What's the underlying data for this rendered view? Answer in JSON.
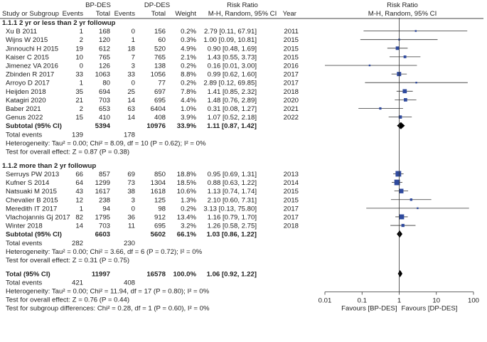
{
  "chart_data": {
    "type": "forest",
    "headers": {
      "group1": "BP-DES",
      "group2": "DP-DES",
      "rr_title": "Risk Ratio",
      "rr_method": "M-H, Random, 95% CI",
      "col_study": "Study or Subgroup",
      "col_events1": "Events",
      "col_total1": "Total",
      "col_events2": "Events",
      "col_total2": "Total",
      "col_weight": "Weight",
      "col_year": "Year"
    },
    "subgroups": [
      {
        "title": "1.1.1 2 yr or less than 2 yr followup",
        "studies": [
          {
            "name": "Xu B 2011",
            "e1": "1",
            "n1": "168",
            "e2": "0",
            "n2": "156",
            "weight": "0.2%",
            "ci_text": "2.79 [0.11, 67.91]",
            "year": "2011",
            "rr": 2.79,
            "lo": 0.11,
            "hi": 67.91
          },
          {
            "name": "Wijns W 2015",
            "e1": "2",
            "n1": "120",
            "e2": "1",
            "n2": "60",
            "weight": "0.3%",
            "ci_text": "1.00 [0.09, 10.81]",
            "year": "2015",
            "rr": 1.0,
            "lo": 0.09,
            "hi": 10.81
          },
          {
            "name": "Jinnouchi H 2015",
            "e1": "19",
            "n1": "612",
            "e2": "18",
            "n2": "520",
            "weight": "4.9%",
            "ci_text": "0.90 [0.48, 1.69]",
            "year": "2015",
            "rr": 0.9,
            "lo": 0.48,
            "hi": 1.69
          },
          {
            "name": "Kaiser C 2015",
            "e1": "10",
            "n1": "765",
            "e2": "7",
            "n2": "765",
            "weight": "2.1%",
            "ci_text": "1.43 [0.55, 3.73]",
            "year": "2015",
            "rr": 1.43,
            "lo": 0.55,
            "hi": 3.73
          },
          {
            "name": "Jimenez VA 2016",
            "e1": "0",
            "n1": "126",
            "e2": "3",
            "n2": "138",
            "weight": "0.2%",
            "ci_text": "0.16 [0.01, 3.00]",
            "year": "2016",
            "rr": 0.16,
            "lo": 0.01,
            "hi": 3.0
          },
          {
            "name": "Zbinden R 2017",
            "e1": "33",
            "n1": "1063",
            "e2": "33",
            "n2": "1056",
            "weight": "8.8%",
            "ci_text": "0.99 [0.62, 1.60]",
            "year": "2017",
            "rr": 0.99,
            "lo": 0.62,
            "hi": 1.6
          },
          {
            "name": "Arroyo D 2017",
            "e1": "1",
            "n1": "80",
            "e2": "0",
            "n2": "77",
            "weight": "0.2%",
            "ci_text": "2.89 [0.12, 69.85]",
            "year": "2017",
            "rr": 2.89,
            "lo": 0.12,
            "hi": 69.85
          },
          {
            "name": "Heijden 2018",
            "e1": "35",
            "n1": "694",
            "e2": "25",
            "n2": "697",
            "weight": "7.8%",
            "ci_text": "1.41 [0.85, 2.32]",
            "year": "2018",
            "rr": 1.41,
            "lo": 0.85,
            "hi": 2.32
          },
          {
            "name": "Katagiri 2020",
            "e1": "21",
            "n1": "703",
            "e2": "14",
            "n2": "695",
            "weight": "4.4%",
            "ci_text": "1.48 [0.76, 2.89]",
            "year": "2020",
            "rr": 1.48,
            "lo": 0.76,
            "hi": 2.89
          },
          {
            "name": "Baber 2021",
            "e1": "2",
            "n1": "653",
            "e2": "63",
            "n2": "6404",
            "weight": "1.0%",
            "ci_text": "0.31 [0.08, 1.27]",
            "year": "2021",
            "rr": 0.31,
            "lo": 0.08,
            "hi": 1.27
          },
          {
            "name": "Genus 2022",
            "e1": "15",
            "n1": "410",
            "e2": "14",
            "n2": "408",
            "weight": "3.9%",
            "ci_text": "1.07 [0.52, 2.18]",
            "year": "2022",
            "rr": 1.07,
            "lo": 0.52,
            "hi": 2.18
          }
        ],
        "subtotal": {
          "label": "Subtotal (95% CI)",
          "n1": "5394",
          "n2": "10976",
          "weight": "33.9%",
          "ci_text": "1.11 [0.87, 1.42]",
          "rr": 1.11,
          "lo": 0.87,
          "hi": 1.42
        },
        "total_events": {
          "label": "Total events",
          "e1": "139",
          "e2": "178"
        },
        "heterogeneity": "Heterogeneity: Tau² = 0.00; Chi² = 8.09, df = 10 (P = 0.62); I² = 0%",
        "overall_effect": "Test for overall effect: Z = 0.87 (P = 0.38)"
      },
      {
        "title": "1.1.2 more than 2 yr followup",
        "studies": [
          {
            "name": "Serruys PW 2013",
            "e1": "66",
            "n1": "857",
            "e2": "69",
            "n2": "850",
            "weight": "18.8%",
            "ci_text": "0.95 [0.69, 1.31]",
            "year": "2013",
            "rr": 0.95,
            "lo": 0.69,
            "hi": 1.31
          },
          {
            "name": "Kufner S 2014",
            "e1": "64",
            "n1": "1299",
            "e2": "73",
            "n2": "1304",
            "weight": "18.5%",
            "ci_text": "0.88 [0.63, 1.22]",
            "year": "2014",
            "rr": 0.88,
            "lo": 0.63,
            "hi": 1.22
          },
          {
            "name": "Natsuaki M 2015",
            "e1": "43",
            "n1": "1617",
            "e2": "38",
            "n2": "1618",
            "weight": "10.6%",
            "ci_text": "1.13 [0.74, 1.74]",
            "year": "2015",
            "rr": 1.13,
            "lo": 0.74,
            "hi": 1.74
          },
          {
            "name": "Chevalier B 2015",
            "e1": "12",
            "n1": "238",
            "e2": "3",
            "n2": "125",
            "weight": "1.3%",
            "ci_text": "2.10 [0.60, 7.31]",
            "year": "2015",
            "rr": 2.1,
            "lo": 0.6,
            "hi": 7.31
          },
          {
            "name": "Meredith IT 2017",
            "e1": "1",
            "n1": "94",
            "e2": "0",
            "n2": "98",
            "weight": "0.2%",
            "ci_text": "3.13 [0.13, 75.80]",
            "year": "2017",
            "rr": 3.13,
            "lo": 0.13,
            "hi": 75.8
          },
          {
            "name": "Vlachojannis Gj 2017",
            "e1": "82",
            "n1": "1795",
            "e2": "36",
            "n2": "912",
            "weight": "13.4%",
            "ci_text": "1.16 [0.79, 1.70]",
            "year": "2017",
            "rr": 1.16,
            "lo": 0.79,
            "hi": 1.7
          },
          {
            "name": "Winter 2018",
            "e1": "14",
            "n1": "703",
            "e2": "11",
            "n2": "695",
            "weight": "3.2%",
            "ci_text": "1.26 [0.58, 2.75]",
            "year": "2018",
            "rr": 1.26,
            "lo": 0.58,
            "hi": 2.75
          }
        ],
        "subtotal": {
          "label": "Subtotal (95% CI)",
          "n1": "6603",
          "n2": "5602",
          "weight": "66.1%",
          "ci_text": "1.03 [0.86, 1.22]",
          "rr": 1.03,
          "lo": 0.86,
          "hi": 1.22
        },
        "total_events": {
          "label": "Total events",
          "e1": "282",
          "e2": "230"
        },
        "heterogeneity": "Heterogeneity: Tau² = 0.00; Chi² = 3.66, df = 6 (P = 0.72); I² = 0%",
        "overall_effect": "Test for overall effect: Z = 0.31 (P = 0.75)"
      }
    ],
    "total": {
      "label": "Total (95% CI)",
      "n1": "11997",
      "n2": "16578",
      "weight": "100.0%",
      "ci_text": "1.06 [0.92, 1.22]",
      "rr": 1.06,
      "lo": 0.92,
      "hi": 1.22
    },
    "total_events": {
      "label": "Total events",
      "e1": "421",
      "e2": "408"
    },
    "heterogeneity": "Heterogeneity: Tau² = 0.00; Chi² = 11.94, df = 17 (P = 0.80); I² = 0%",
    "overall_effect": "Test for overall effect: Z = 0.76 (P = 0.44)",
    "subgroup_test": "Test for subgroup differences: Chi² = 0.28, df = 1 (P = 0.60), I² = 0%",
    "x_scale": "log",
    "x_ticks": [
      "0.01",
      "0.1",
      "1",
      "10",
      "100"
    ],
    "xlim": [
      0.01,
      100
    ],
    "favours_left": "Favours [BP-DES]",
    "favours_right": "Favours [DP-DES]",
    "colors": {
      "marker": "#2f4a9e",
      "text": "#222222",
      "line": "#555555",
      "diamond": "#000000"
    }
  }
}
